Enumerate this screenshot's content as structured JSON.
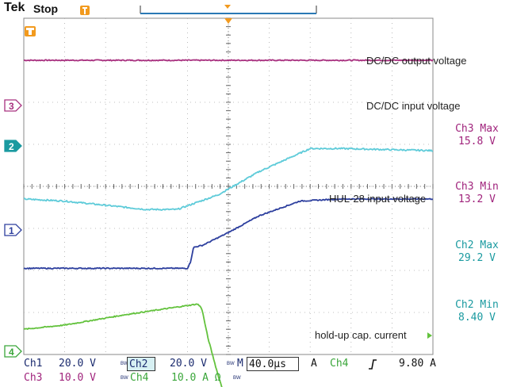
{
  "header": {
    "brand": "Tek",
    "status": "Stop"
  },
  "annotations": [
    "DC/DC output voltage",
    "DC/DC input voltage",
    "HUL-28 input voltage",
    "hold-up cap. current"
  ],
  "channel_markers": [
    "3",
    "2",
    "1",
    "4"
  ],
  "measurements": [
    {
      "label": "Ch3 Max",
      "value": "15.8 V",
      "color": "#a0237c"
    },
    {
      "label": "Ch3 Min",
      "value": "13.2 V",
      "color": "#a0237c"
    },
    {
      "label": "Ch2 Max",
      "value": "29.2 V",
      "color": "#1a9aa0"
    },
    {
      "label": "Ch2 Min",
      "value": "8.40 V",
      "color": "#1a9aa0"
    }
  ],
  "settings": {
    "ch1_label": "Ch1",
    "ch1_value": "20.0 V",
    "ch2_label": "Ch2",
    "ch2_value": "20.0 V",
    "ch3_label": "Ch3",
    "ch3_value": "10.0 V",
    "ch4_label": "Ch4",
    "ch4_value": "10.0 A Ω",
    "bw_tag": "BW",
    "time_label": "M",
    "time_value": "40.0µs",
    "trigger_mode": "A",
    "trigger_source": "Ch4",
    "trigger_level": "9.80 A"
  },
  "colors": {
    "ch1": "#2d3f9e",
    "ch2": "#5ecbd9",
    "ch3": "#a8307f",
    "ch4": "#63c23d",
    "trigger": "#f29a1e"
  },
  "chart_data": {
    "type": "line",
    "xlabel": "",
    "ylabel": "",
    "grid": true,
    "time_per_div_us": 40,
    "x_divisions": 10,
    "y_divisions": 8,
    "x_unit": "us",
    "y_unit": "div",
    "series": [
      {
        "channel": "Ch3",
        "name": "DC/DC output voltage",
        "color": "#a8307f",
        "x": [
          0,
          400
        ],
        "y": [
          3.0,
          3.0
        ]
      },
      {
        "channel": "Ch2",
        "name": "DC/DC input voltage",
        "color": "#5ecbd9",
        "x": [
          0,
          40,
          120,
          150,
          190,
          230,
          280,
          310,
          400
        ],
        "y": [
          -0.3,
          -0.35,
          -0.55,
          -0.55,
          -0.2,
          0.35,
          0.9,
          0.9,
          0.85
        ]
      },
      {
        "channel": "Ch1",
        "name": "HUL-28 input voltage",
        "color": "#2d3f9e",
        "x": [
          0,
          160,
          163,
          166,
          175,
          200,
          230,
          270,
          310,
          400
        ],
        "y": [
          -1.95,
          -1.95,
          -1.8,
          -1.45,
          -1.4,
          -1.1,
          -0.7,
          -0.35,
          -0.3,
          -0.3
        ]
      },
      {
        "channel": "Ch4",
        "name": "hold-up cap. current",
        "color": "#63c23d",
        "x": [
          0,
          40,
          100,
          170,
          174,
          180,
          190,
          196,
          400
        ],
        "y": [
          -3.4,
          -3.3,
          -3.05,
          -2.8,
          -2.9,
          -3.6,
          -4.5,
          -4.95,
          -4.95
        ]
      }
    ]
  }
}
